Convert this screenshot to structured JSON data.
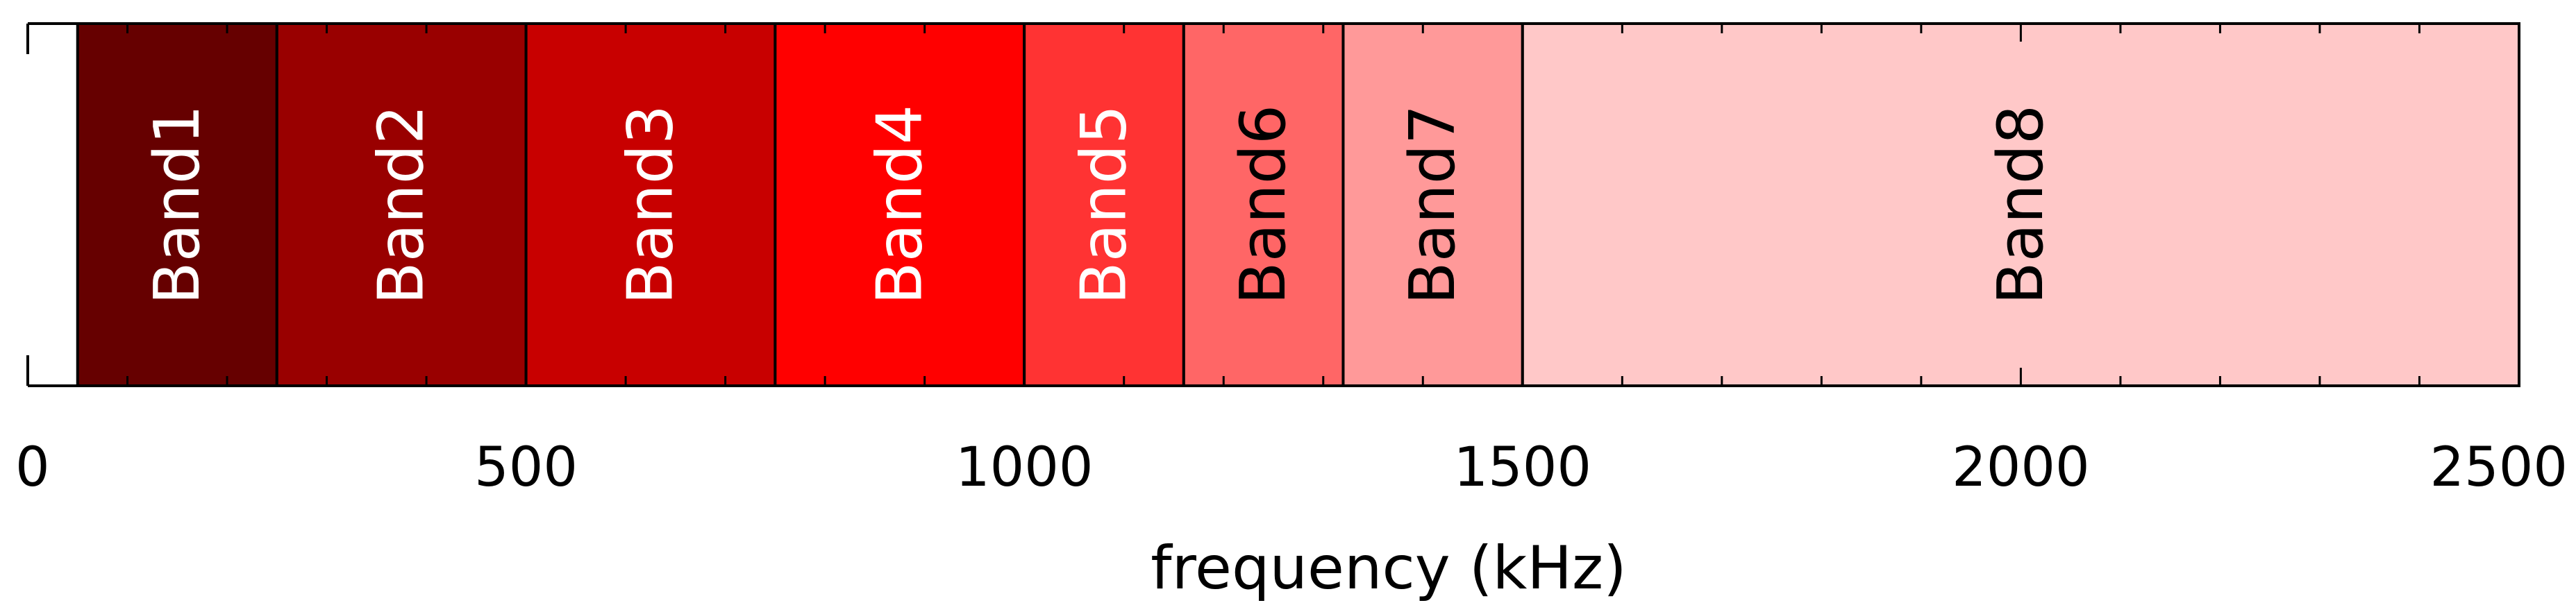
{
  "chart_data": {
    "type": "bar",
    "title": "",
    "xlabel": "frequency (kHz)",
    "ylabel": "",
    "xlim": [
      0,
      2500
    ],
    "xticks": [
      "0",
      "500",
      "1000",
      "1500",
      "2000",
      "2500"
    ],
    "xtick_values": [
      0,
      500,
      1000,
      1500,
      2000,
      2500
    ],
    "minor_tick_step": 100,
    "grid": false,
    "legend": "none",
    "bands": [
      {
        "label": "Band1",
        "start": 50,
        "end": 250,
        "color": "#660000",
        "text_color": "#ffffff"
      },
      {
        "label": "Band2",
        "start": 250,
        "end": 500,
        "color": "#990000",
        "text_color": "#ffffff"
      },
      {
        "label": "Band3",
        "start": 500,
        "end": 750,
        "color": "#c80000",
        "text_color": "#ffffff"
      },
      {
        "label": "Band4",
        "start": 750,
        "end": 1000,
        "color": "#ff0000",
        "text_color": "#ffffff"
      },
      {
        "label": "Band5",
        "start": 1000,
        "end": 1160,
        "color": "#ff3333",
        "text_color": "#ffffff"
      },
      {
        "label": "Band6",
        "start": 1160,
        "end": 1320,
        "color": "#ff6666",
        "text_color": "#000000"
      },
      {
        "label": "Band7",
        "start": 1320,
        "end": 1500,
        "color": "#ff9999",
        "text_color": "#000000"
      },
      {
        "label": "Band8",
        "start": 1500,
        "end": 2500,
        "color": "#ffc8c8",
        "text_color": "#000000"
      }
    ]
  }
}
